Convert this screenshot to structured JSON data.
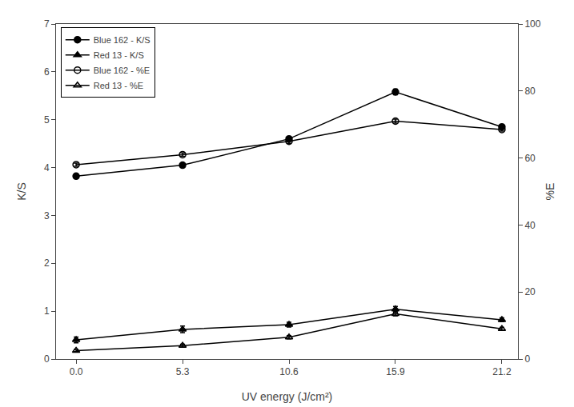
{
  "chart_data": {
    "type": "line",
    "xlabel": "UV energy (J/cm²)",
    "ylabel": "K/S",
    "y2label": "%E",
    "x": [
      0.0,
      5.3,
      10.6,
      15.9,
      21.2
    ],
    "xlim": [
      -1,
      22
    ],
    "xticks": [
      {
        "value": 0,
        "label": "0.0"
      },
      5.3,
      10.6,
      15.9,
      21.2
    ],
    "ylim": [
      0,
      7
    ],
    "yticks": [
      0,
      1,
      2,
      3,
      4,
      5,
      6,
      7
    ],
    "y2lim": [
      0,
      100
    ],
    "y2ticks": [
      0,
      20,
      40,
      60,
      80,
      100
    ],
    "series": [
      {
        "name": "Blue 162 - K/S",
        "color": "#000000",
        "marker": "circle",
        "line_style": "solid",
        "values": [
          3.82,
          4.05,
          4.6,
          5.58,
          4.85
        ],
        "errors": [
          0.04,
          0.03,
          0.04,
          0.06,
          0.04
        ]
      },
      {
        "name": "Red 13 - K/S",
        "color": "#000000",
        "marker": "triangle-up",
        "line_style": "solid",
        "values": [
          0.4,
          0.62,
          0.72,
          1.04,
          0.82
        ],
        "errors": [
          0.06,
          0.07,
          0.05,
          0.06,
          0.04
        ]
      },
      {
        "name": "Blue 162 - %E",
        "color": "#000000",
        "marker": "circle-open",
        "line_style": "solid",
        "axis": "y2",
        "values": [
          58.0,
          61.0,
          65.0,
          71.0,
          68.5
        ],
        "errors": [
          0.5,
          0.5,
          0.6,
          0.6,
          0.5
        ]
      },
      {
        "name": "Red 13 - %E",
        "color": "#000000",
        "marker": "triangle-up-open",
        "line_style": "solid",
        "axis": "y2",
        "values": [
          2.5,
          4.0,
          6.5,
          13.5,
          9.0
        ],
        "errors": [
          0.3,
          0.4,
          0.5,
          0.6,
          0.4
        ]
      }
    ],
    "legend": "upper left",
    "grid": false
  }
}
